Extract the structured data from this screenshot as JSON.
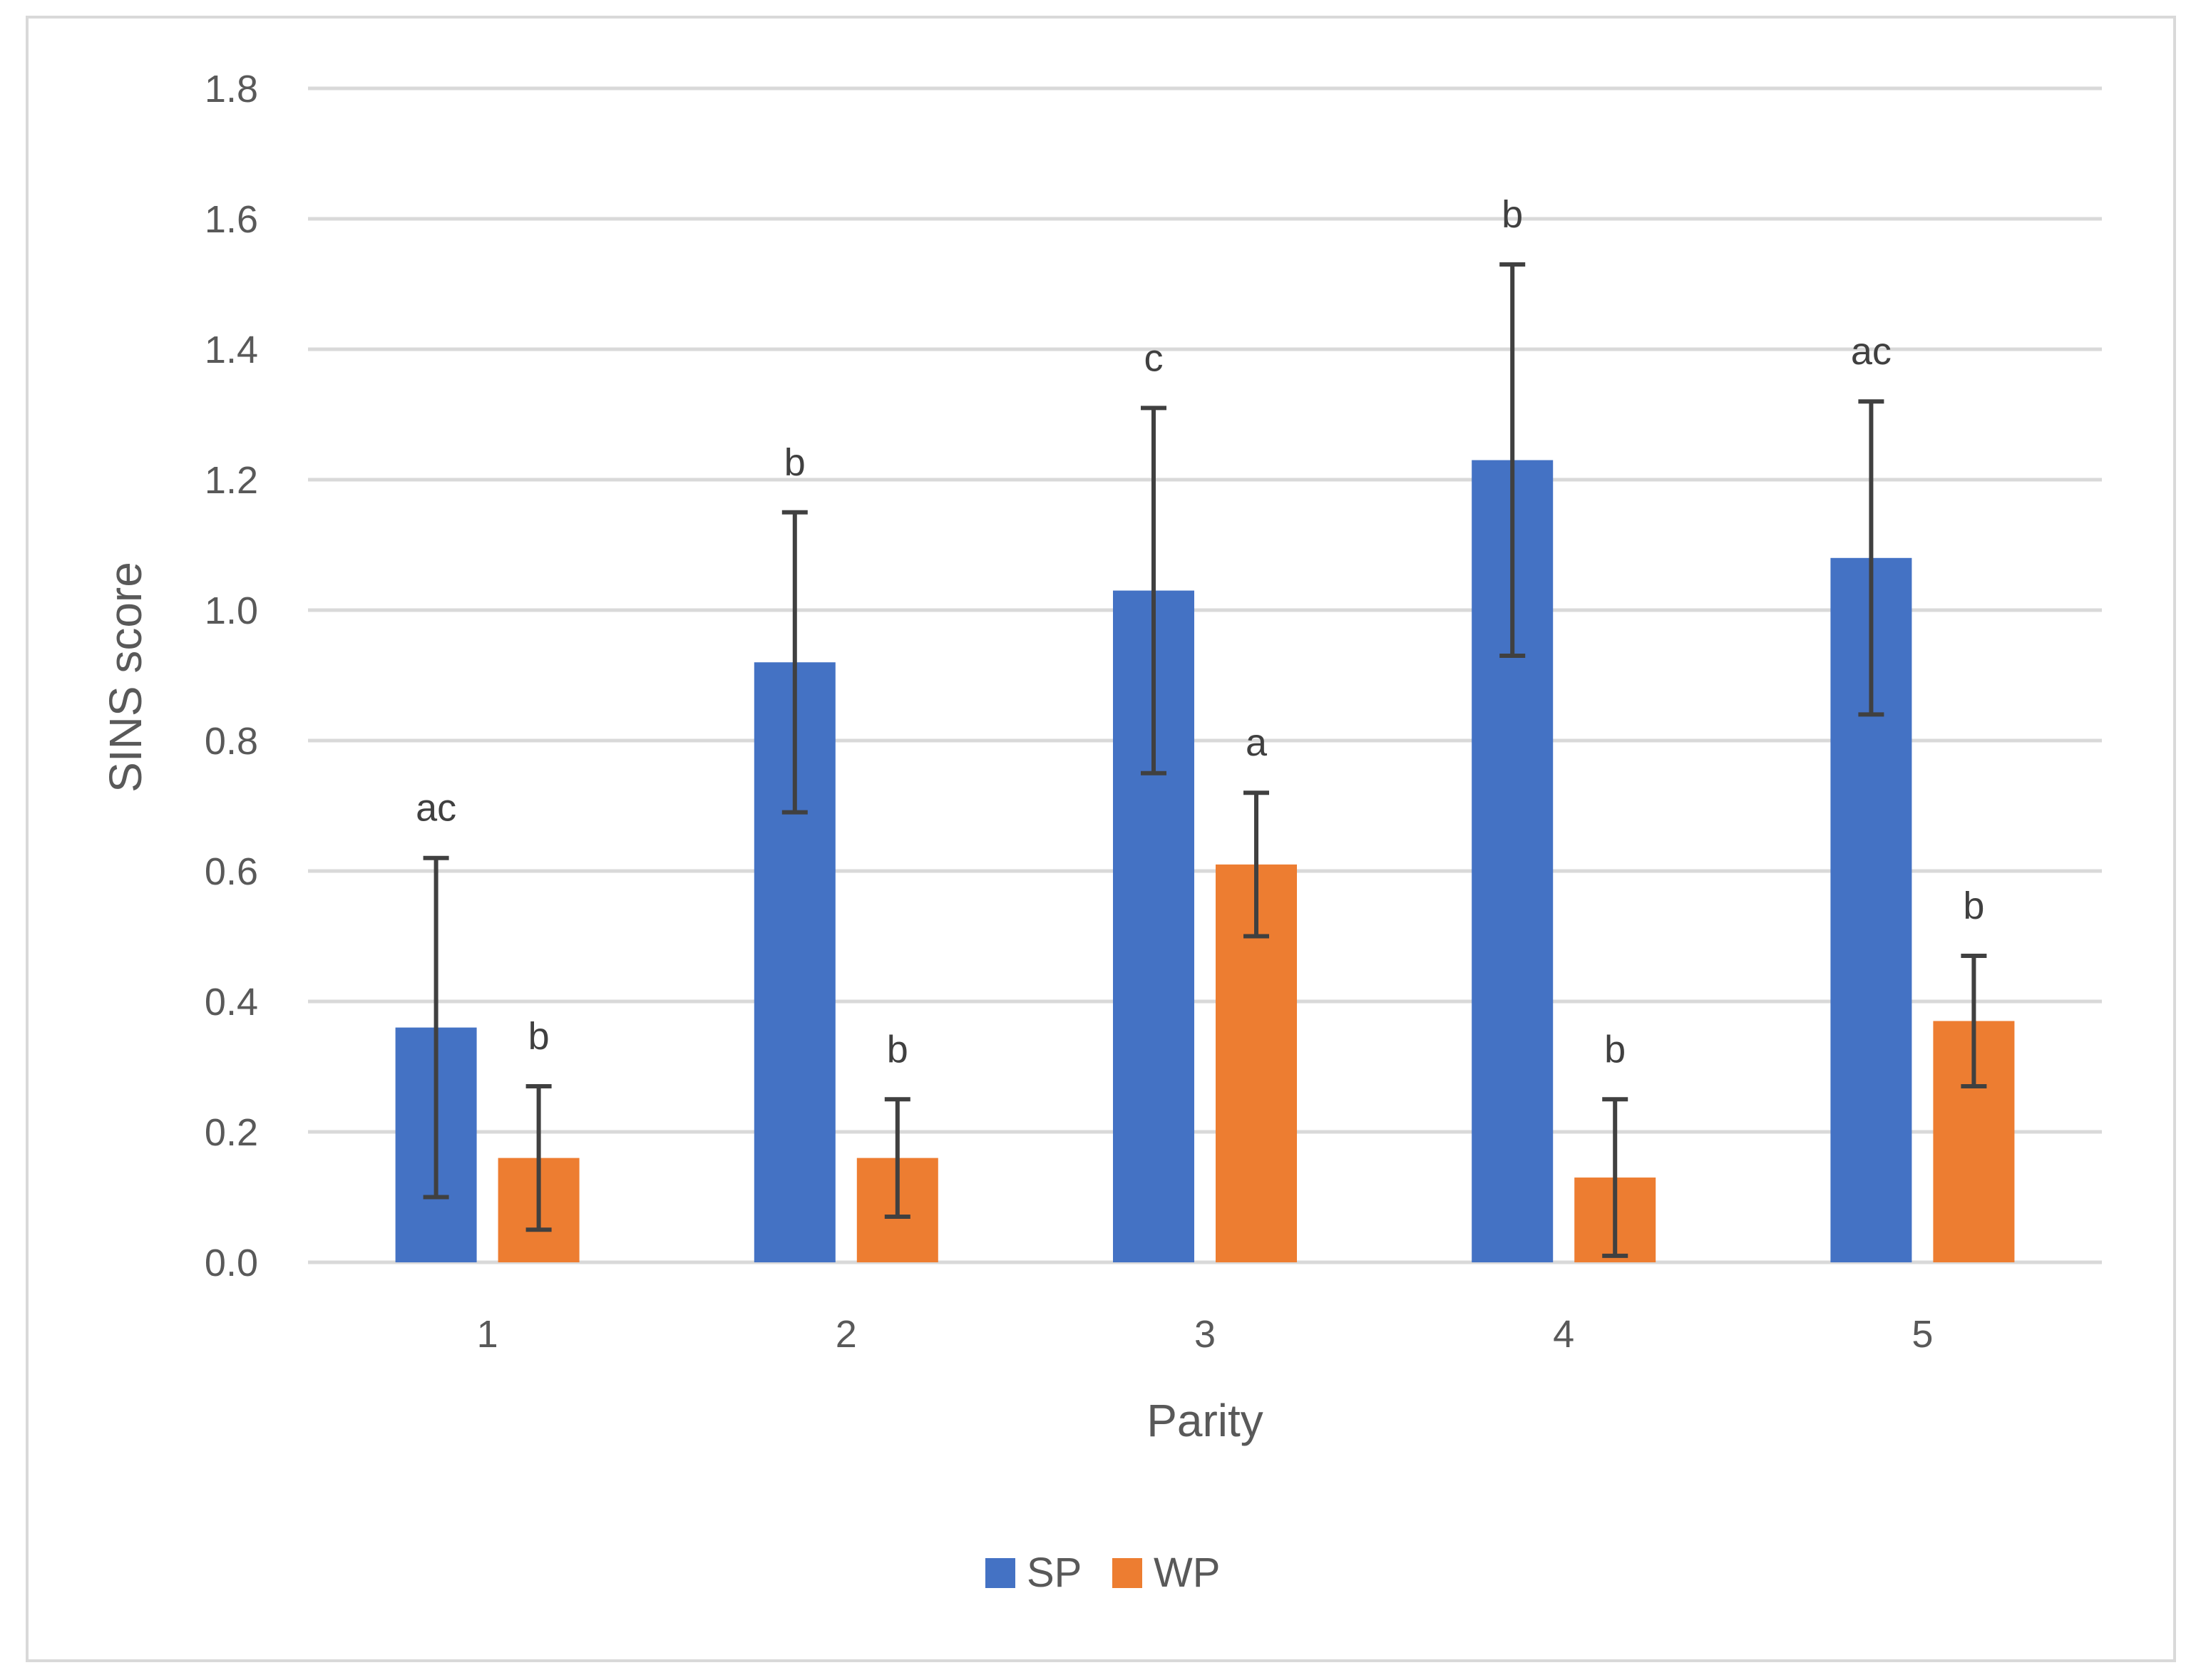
{
  "chart_data": {
    "type": "bar",
    "title": "",
    "xlabel": "Parity",
    "ylabel": "SINS score",
    "categories": [
      "1",
      "2",
      "3",
      "4",
      "5"
    ],
    "ylim": [
      0,
      1.8
    ],
    "yticks": [
      "0.0",
      "0.2",
      "0.4",
      "0.6",
      "0.8",
      "1.0",
      "1.2",
      "1.4",
      "1.6",
      "1.8"
    ],
    "grid": true,
    "legend_position": "bottom",
    "series": [
      {
        "name": "SP",
        "color": "#4472C4",
        "values": [
          0.36,
          0.92,
          1.03,
          1.23,
          1.08
        ],
        "error": [
          0.26,
          0.23,
          0.28,
          0.3,
          0.24
        ],
        "letters": [
          "ac",
          "b",
          "c",
          "b",
          "ac"
        ]
      },
      {
        "name": "WP",
        "color": "#ED7D31",
        "values": [
          0.16,
          0.16,
          0.61,
          0.13,
          0.37
        ],
        "error": [
          0.11,
          0.09,
          0.11,
          0.12,
          0.1
        ],
        "letters": [
          "b",
          "b",
          "a",
          "b",
          "b"
        ]
      }
    ],
    "error_bar_color": "#404040",
    "gridline_color": "#D9D9D9",
    "frame_color": "#D9D9D9"
  }
}
